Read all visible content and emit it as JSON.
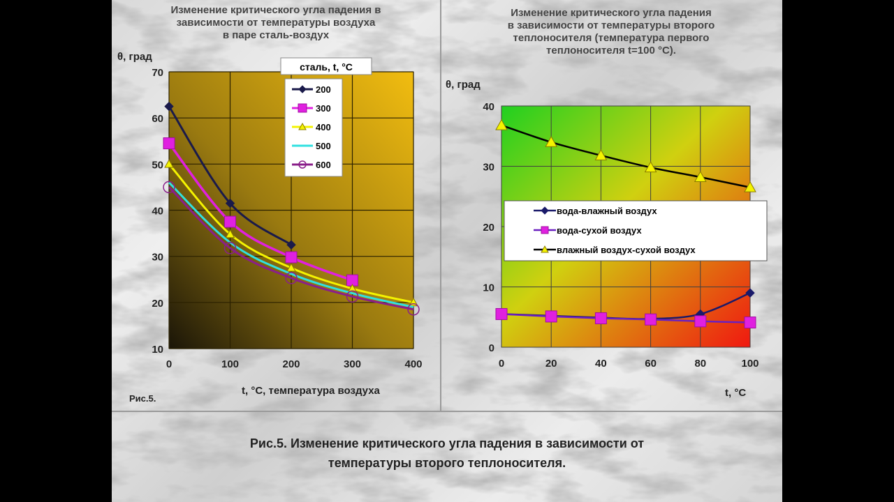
{
  "left_panel": {
    "title_lines": [
      "Изменение критического угла падения в",
      "зависимости от температуры воздуха",
      "в паре сталь-воздух"
    ],
    "fig_label": "Рис.5."
  },
  "right_panel": {
    "title_lines": [
      "Изменение критического угла падения",
      "в зависимости от температуры второго",
      "теплоносителя (температура первого",
      "теплоносителя t=100 °C)."
    ]
  },
  "caption_lines": [
    "Рис.5. Изменение критического угла падения в зависимости от",
    "температуры второго теплоносителя."
  ],
  "chart_data": [
    {
      "type": "line",
      "ylabel": "θ, град",
      "xlabel": "t, °C, температура воздуха",
      "xlim": [
        0,
        400
      ],
      "ylim": [
        10,
        70
      ],
      "xticks": [
        0,
        100,
        200,
        300,
        400
      ],
      "yticks": [
        10,
        20,
        30,
        40,
        50,
        60,
        70
      ],
      "grid": true,
      "legend_title": "сталь, t, °C",
      "legend_position": "top-right",
      "series": [
        {
          "name": "200",
          "color": "#1a1a4a",
          "marker": "diamond",
          "x": [
            0,
            100,
            200
          ],
          "y": [
            62.5,
            41.5,
            32.5
          ]
        },
        {
          "name": "300",
          "color": "#e020e0",
          "marker": "square",
          "x": [
            0,
            100,
            200,
            300
          ],
          "y": [
            54.5,
            37.5,
            29.8,
            24.8
          ]
        },
        {
          "name": "400",
          "color": "#f4f400",
          "marker": "triangle",
          "x": [
            0,
            100,
            200,
            300,
            400
          ],
          "y": [
            50,
            34.8,
            27.5,
            23,
            20
          ]
        },
        {
          "name": "500",
          "color": "#30e0e0",
          "marker": "none",
          "x": [
            0,
            100,
            200,
            300,
            400
          ],
          "y": [
            46,
            33,
            26.2,
            22,
            19
          ]
        },
        {
          "name": "600",
          "color": "#8a1f8a",
          "marker": "circle",
          "x": [
            0,
            100,
            200,
            300,
            400
          ],
          "y": [
            45,
            31.8,
            25.3,
            21.3,
            18.5
          ]
        }
      ]
    },
    {
      "type": "line",
      "ylabel": "θ, град",
      "xlabel": "t, °C",
      "xlim": [
        0,
        100
      ],
      "ylim": [
        0,
        40
      ],
      "xticks": [
        0,
        20,
        40,
        60,
        80,
        100
      ],
      "yticks": [
        0,
        10,
        20,
        30,
        40
      ],
      "grid": true,
      "legend_position": "center",
      "series": [
        {
          "name": "вода-влажный  воздух",
          "color": "#1a1a6a",
          "marker": "diamond",
          "x": [
            0,
            20,
            40,
            60,
            80,
            100
          ],
          "y": [
            5.5,
            5.2,
            4.9,
            4.7,
            5.5,
            9
          ]
        },
        {
          "name": "вода-сухой  воздух",
          "color": "#e020e0",
          "marker": "square",
          "x": [
            0,
            20,
            40,
            60,
            80,
            100
          ],
          "y": [
            5.5,
            5.1,
            4.8,
            4.6,
            4.3,
            4.1
          ]
        },
        {
          "name": "влажный  воздух-сухой  воздух",
          "color": "#000000",
          "marker": "triangle",
          "x": [
            0,
            20,
            40,
            60,
            80,
            100
          ],
          "y": [
            36.8,
            34,
            31.8,
            29.8,
            28.2,
            26.5
          ]
        }
      ]
    }
  ]
}
